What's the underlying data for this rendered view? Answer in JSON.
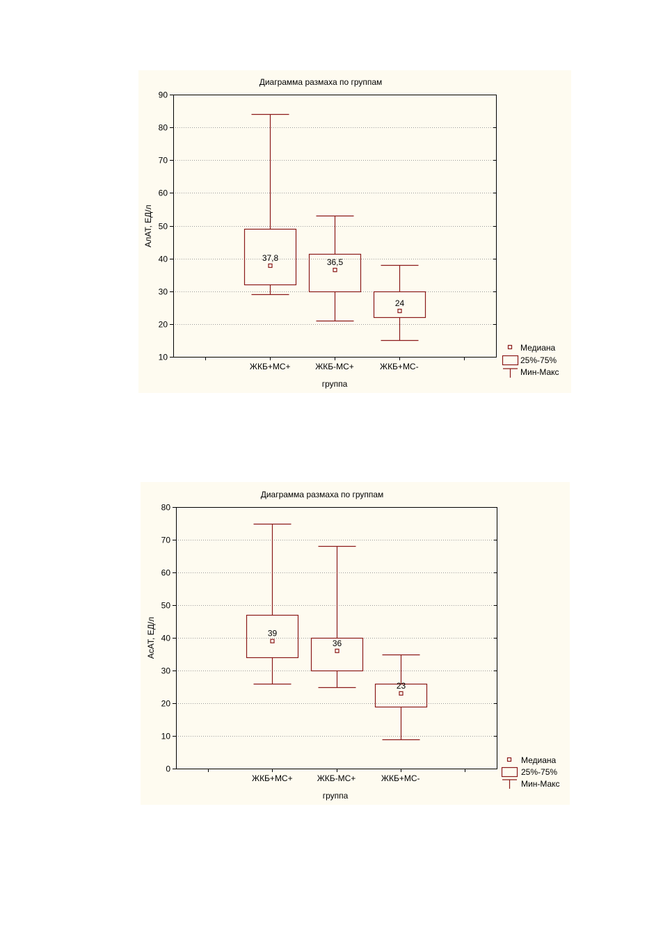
{
  "chart_data": [
    {
      "type": "boxplot",
      "title": "Диаграмма размаха по группам",
      "xlabel": "группа",
      "ylabel": "АлАТ, ЕД/л",
      "ylim": [
        10,
        90
      ],
      "yticks": [
        "10",
        "20",
        "30",
        "40",
        "50",
        "60",
        "70",
        "80",
        "90"
      ],
      "categories": [
        "ЖКБ+МС+",
        "ЖКБ-МС+",
        "ЖКБ+МС-"
      ],
      "boxes": [
        {
          "category": "ЖКБ+МС+",
          "min": 29,
          "q1": 32,
          "median": 37.8,
          "median_label": "37,8",
          "q3": 49,
          "max": 84
        },
        {
          "category": "ЖКБ-МС+",
          "min": 21,
          "q1": 30,
          "median": 36.5,
          "median_label": "36,5",
          "q3": 41.5,
          "max": 53
        },
        {
          "category": "ЖКБ+МС-",
          "min": 15,
          "q1": 22,
          "median": 24,
          "median_label": "24",
          "q3": 30,
          "max": 38
        }
      ],
      "legend": [
        "Медиана",
        "25%-75%",
        "Мин-Макс"
      ],
      "legend_position": "bottom-right",
      "grid": true,
      "color": "#8b1a1a"
    },
    {
      "type": "boxplot",
      "title": "Диаграмма размаха по группам",
      "xlabel": "группа",
      "ylabel": "АсАТ, ЕД/л",
      "ylim": [
        0,
        80
      ],
      "yticks": [
        "0",
        "10",
        "20",
        "30",
        "40",
        "50",
        "60",
        "70",
        "80"
      ],
      "categories": [
        "ЖКБ+МС+",
        "ЖКБ-МС+",
        "ЖКБ+МС-"
      ],
      "boxes": [
        {
          "category": "ЖКБ+МС+",
          "min": 26,
          "q1": 34,
          "median": 39,
          "median_label": "39",
          "q3": 47,
          "max": 75
        },
        {
          "category": "ЖКБ-МС+",
          "min": 25,
          "q1": 30,
          "median": 36,
          "median_label": "36",
          "q3": 40,
          "max": 68
        },
        {
          "category": "ЖКБ+МС-",
          "min": 9,
          "q1": 19,
          "median": 23,
          "median_label": "23",
          "q3": 26,
          "max": 35
        }
      ],
      "legend": [
        "Медиана",
        "25%-75%",
        "Мин-Макс"
      ],
      "legend_position": "bottom-right",
      "grid": true,
      "color": "#8b1a1a"
    }
  ]
}
